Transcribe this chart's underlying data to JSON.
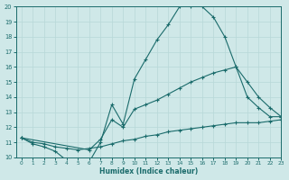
{
  "xlabel": "Humidex (Indice chaleur)",
  "bg_color": "#cfe8e8",
  "line_color": "#1a6b6b",
  "grid_color": "#b8d8d8",
  "ylim": [
    10,
    20
  ],
  "xlim": [
    -0.5,
    23
  ],
  "yticks": [
    10,
    11,
    12,
    13,
    14,
    15,
    16,
    17,
    18,
    19,
    20
  ],
  "xticks": [
    0,
    1,
    2,
    3,
    4,
    5,
    6,
    7,
    8,
    9,
    10,
    11,
    12,
    13,
    14,
    15,
    16,
    17,
    18,
    19,
    20,
    21,
    22,
    23
  ],
  "curve1_x": [
    0,
    1,
    2,
    3,
    4,
    5,
    6,
    7,
    8,
    9,
    10,
    11,
    12,
    13,
    14,
    15,
    16,
    17,
    18,
    19,
    20,
    21,
    22,
    23
  ],
  "curve1_y": [
    11.3,
    10.9,
    10.7,
    10.4,
    9.8,
    9.7,
    9.7,
    11.0,
    13.5,
    12.2,
    15.2,
    16.5,
    17.8,
    18.8,
    20.0,
    20.0,
    20.0,
    19.3,
    18.0,
    16.0,
    14.0,
    13.3,
    12.7,
    12.7
  ],
  "curve2_x": [
    0,
    6,
    7,
    8,
    9,
    10,
    11,
    12,
    13,
    14,
    15,
    16,
    17,
    18,
    19,
    20,
    21,
    22,
    23
  ],
  "curve2_y": [
    11.3,
    10.5,
    11.2,
    12.5,
    12.0,
    13.2,
    13.5,
    13.8,
    14.2,
    14.6,
    15.0,
    15.3,
    15.6,
    15.8,
    16.0,
    15.0,
    14.0,
    13.3,
    12.7
  ],
  "curve3_x": [
    0,
    1,
    2,
    3,
    4,
    5,
    6,
    7,
    8,
    9,
    10,
    11,
    12,
    13,
    14,
    15,
    16,
    17,
    18,
    19,
    20,
    21,
    22,
    23
  ],
  "curve3_y": [
    11.3,
    11.0,
    10.9,
    10.7,
    10.6,
    10.5,
    10.6,
    10.7,
    10.9,
    11.1,
    11.2,
    11.4,
    11.5,
    11.7,
    11.8,
    11.9,
    12.0,
    12.1,
    12.2,
    12.3,
    12.3,
    12.3,
    12.4,
    12.5
  ]
}
